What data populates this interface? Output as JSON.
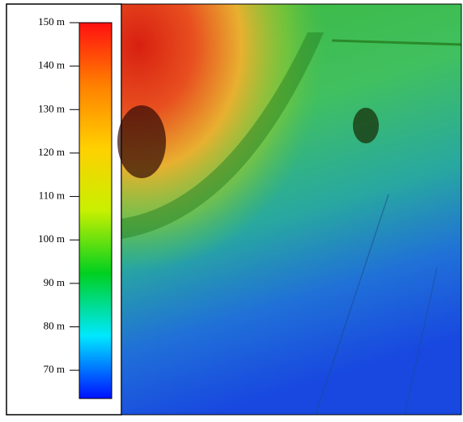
{
  "legend": {
    "lim": [
      63.5,
      150
    ],
    "ticks": [
      {
        "value": 150,
        "label": "150 m"
      },
      {
        "value": 140,
        "label": "140 m"
      },
      {
        "value": 130,
        "label": "130 m"
      },
      {
        "value": 120,
        "label": "120 m"
      },
      {
        "value": 110,
        "label": "110 m"
      },
      {
        "value": 100,
        "label": "100 m"
      },
      {
        "value": 90,
        "label": "90 m"
      },
      {
        "value": 80,
        "label": "80 m"
      },
      {
        "value": 70,
        "label": "70 m"
      }
    ],
    "colors": [
      "#0010ff",
      "#00e8ff",
      "#00d020",
      "#c8f000",
      "#ffd000",
      "#ff8000",
      "#ff1010"
    ]
  }
}
